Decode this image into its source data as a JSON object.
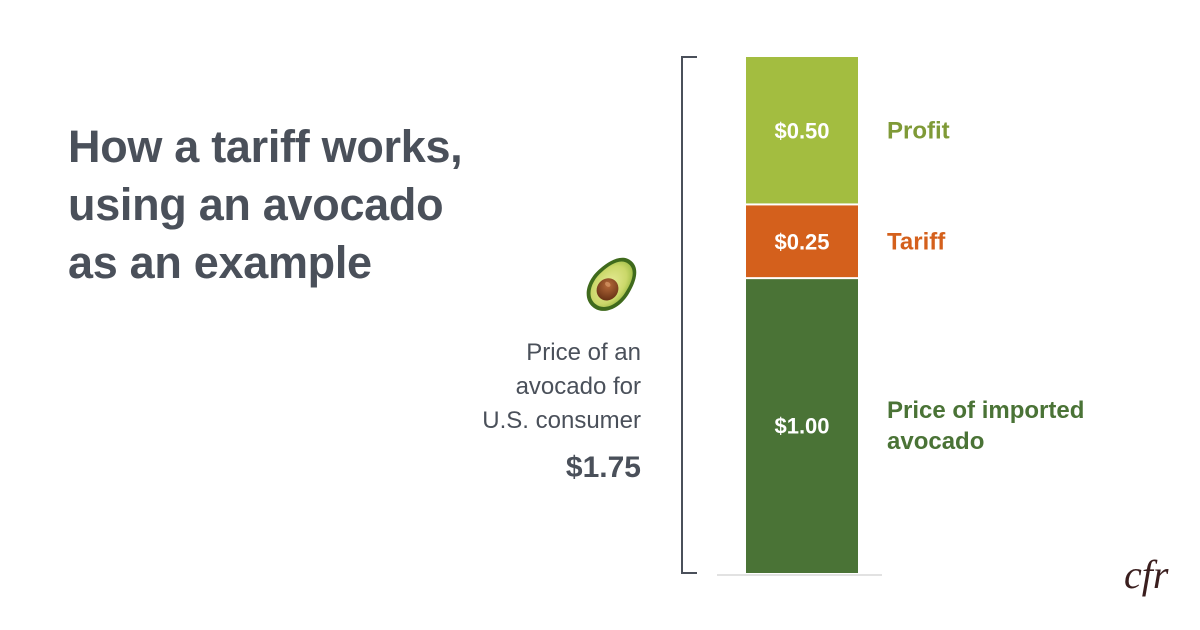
{
  "title_lines": [
    "How a tariff works,",
    "using an avocado",
    "as an example"
  ],
  "consumer_note_lines": [
    "Price of an",
    "avocado for",
    "U.S. consumer"
  ],
  "total_price": "$1.75",
  "logo_text": "cfr",
  "chart_data": {
    "type": "bar",
    "stacked": true,
    "categories": [
      "Price of an avocado for U.S. consumer"
    ],
    "total": 1.75,
    "ylim": [
      0,
      1.75
    ],
    "grid": false,
    "legend": "right",
    "series": [
      {
        "name": "Price of imported avocado",
        "label_lines": [
          "Price of imported",
          "avocado"
        ],
        "values": [
          1.0
        ],
        "value_label": "$1.00",
        "color": "#4a7336",
        "label_color": "#4a7336"
      },
      {
        "name": "Tariff",
        "label_lines": [
          "Tariff"
        ],
        "values": [
          0.25
        ],
        "value_label": "$0.25",
        "color": "#d4601c",
        "label_color": "#d4601c"
      },
      {
        "name": "Profit",
        "label_lines": [
          "Profit"
        ],
        "values": [
          0.5
        ],
        "value_label": "$0.50",
        "color": "#a3bd40",
        "label_color": "#7f9a37"
      }
    ]
  },
  "colors": {
    "title_text": "#4a505a",
    "bracket": "#4a505a",
    "baseline": "#d8d8d8",
    "logo": "#3a1e1e"
  },
  "icons": [
    "avocado-icon",
    "cfr-logo"
  ]
}
